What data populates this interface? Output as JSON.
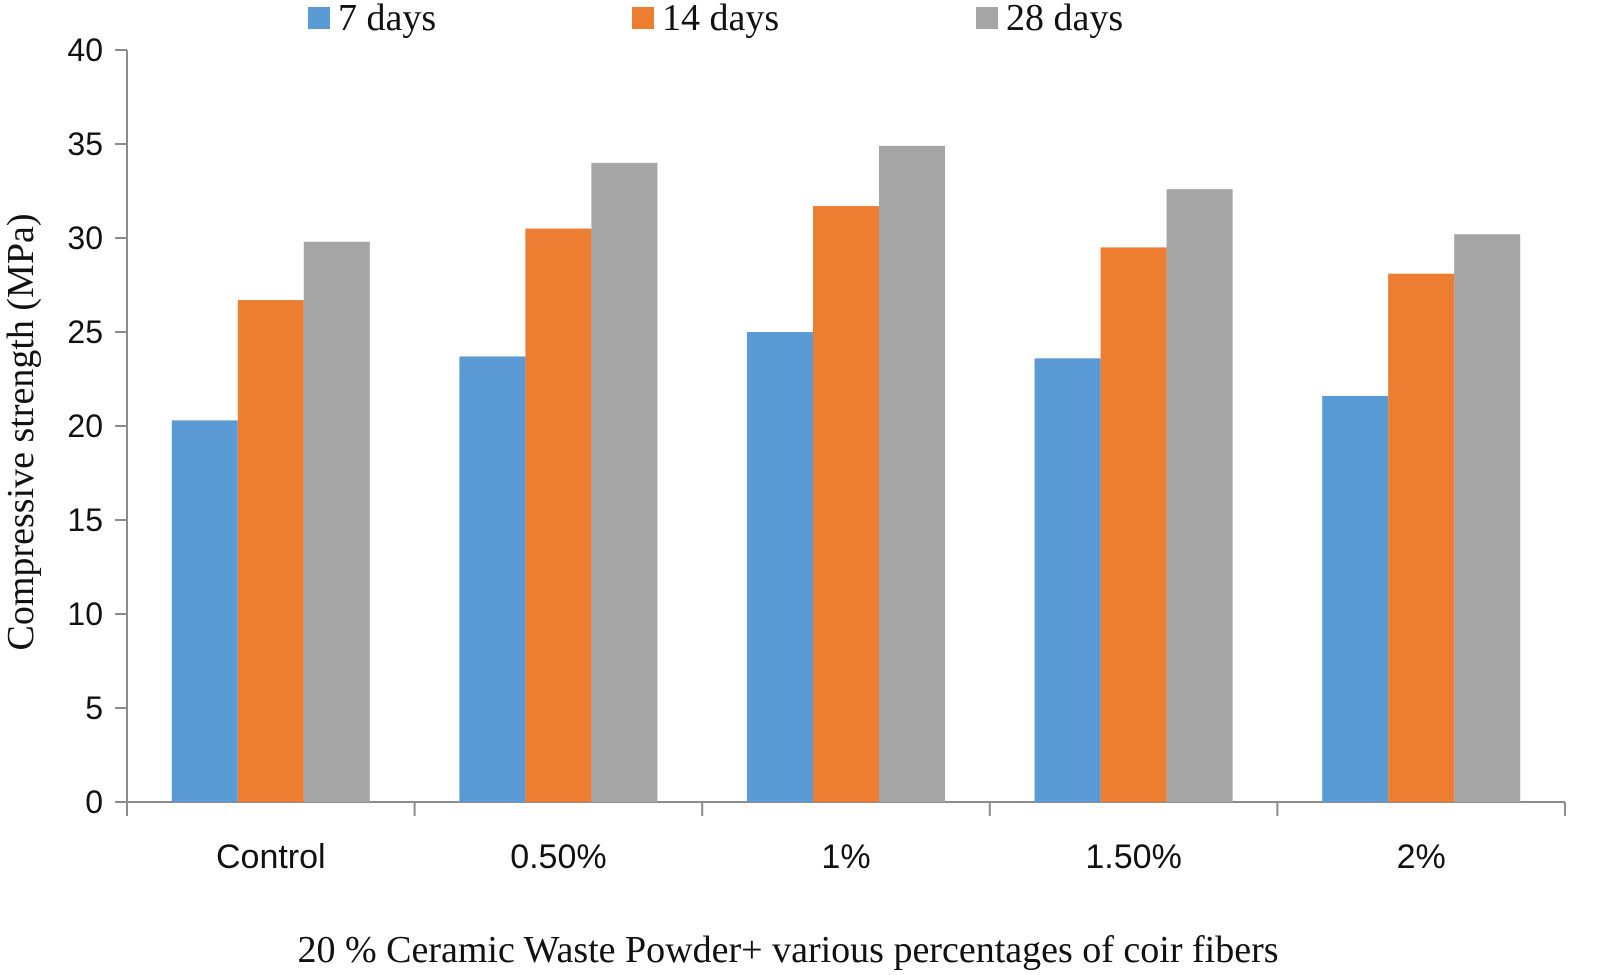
{
  "chart_data": {
    "type": "bar",
    "categories": [
      "Control",
      "0.50%",
      "1%",
      "1.50%",
      "2%"
    ],
    "series": [
      {
        "name": "7 days",
        "color": "#5B9BD5",
        "values": [
          20.3,
          23.7,
          25.0,
          23.6,
          21.6
        ]
      },
      {
        "name": "14 days",
        "color": "#ED7D31",
        "values": [
          26.7,
          30.5,
          31.7,
          29.5,
          28.1
        ]
      },
      {
        "name": "28 days",
        "color": "#A5A5A5",
        "values": [
          29.8,
          34.0,
          34.9,
          32.6,
          30.2
        ]
      }
    ],
    "xlabel": "20 % Ceramic Waste Powder+ various percentages of coir fibers",
    "ylabel": "Compressive strength (MPa)",
    "ylim": [
      0,
      40
    ],
    "yticks": [
      0,
      5,
      10,
      15,
      20,
      25,
      30,
      35,
      40
    ],
    "grid": false,
    "legend_position": "top-center"
  }
}
